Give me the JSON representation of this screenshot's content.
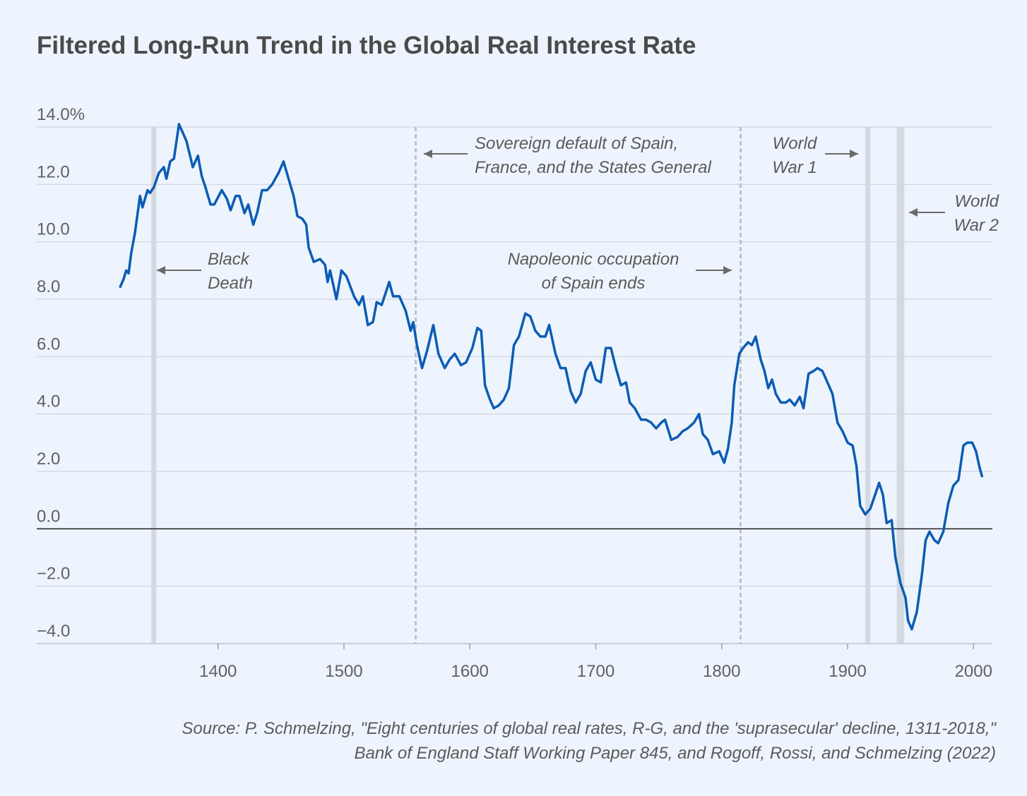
{
  "chart_data": {
    "type": "line",
    "title": "Filtered Long-Run Trend in the Global Real Interest Rate",
    "source": [
      "Source: P. Schmelzing, \"Eight centuries of global real rates, R-G, and the 'suprasecular' decline, 1311-2018,\"",
      "Bank of England Staff Working Paper 845, and Rogoff, Rossi, and Schmelzing (2022)"
    ],
    "color": "#0b5cb5",
    "xlim": [
      1256,
      2015
    ],
    "ylim": [
      -4,
      14
    ],
    "xticks": [
      1400,
      1500,
      1600,
      1700,
      1800,
      1900,
      2000
    ],
    "yticks": [
      {
        "value": 14,
        "label": "14.0%"
      },
      {
        "value": 12,
        "label": "12.0"
      },
      {
        "value": 10,
        "label": "10.0"
      },
      {
        "value": 8,
        "label": "8.0"
      },
      {
        "value": 6,
        "label": "6.0"
      },
      {
        "value": 4,
        "label": "4.0"
      },
      {
        "value": 2,
        "label": "2.0"
      },
      {
        "value": 0,
        "label": "0.0"
      },
      {
        "value": -2,
        "label": "−2.0"
      },
      {
        "value": -4,
        "label": "−4.0"
      }
    ],
    "grid": true,
    "events": [
      {
        "label": [
          "Black",
          "Death"
        ],
        "years": [
          1347,
          1351
        ],
        "style": "band"
      },
      {
        "label": [
          "Sovereign default of Spain,",
          "France, and the States General"
        ],
        "years": [
          1557
        ],
        "style": "dashed"
      },
      {
        "label": [
          "Napoleonic occupation",
          "of Spain ends"
        ],
        "years": [
          1815
        ],
        "style": "dashed"
      },
      {
        "label": [
          "World",
          "War 1"
        ],
        "years": [
          1914,
          1918
        ],
        "style": "band"
      },
      {
        "label": [
          "World",
          "War 2"
        ],
        "years": [
          1939,
          1945
        ],
        "style": "band"
      }
    ],
    "x": [
      1322,
      1325,
      1327,
      1329,
      1331,
      1334,
      1338,
      1340,
      1344,
      1346,
      1349,
      1353,
      1357,
      1359,
      1362,
      1365,
      1369,
      1372,
      1375,
      1380,
      1384,
      1387,
      1390,
      1394,
      1397,
      1403,
      1407,
      1410,
      1414,
      1417,
      1421,
      1424,
      1428,
      1431,
      1435,
      1439,
      1443,
      1448,
      1452,
      1456,
      1460,
      1463,
      1467,
      1470,
      1472,
      1476,
      1481,
      1485,
      1487,
      1489,
      1494,
      1498,
      1502,
      1508,
      1512,
      1515,
      1519,
      1523,
      1526,
      1530,
      1536,
      1539,
      1544,
      1549,
      1553,
      1555,
      1558,
      1562,
      1566,
      1571,
      1575,
      1580,
      1584,
      1588,
      1593,
      1597,
      1602,
      1606,
      1609,
      1612,
      1616,
      1619,
      1623,
      1627,
      1631,
      1635,
      1639,
      1644,
      1648,
      1652,
      1656,
      1660,
      1663,
      1668,
      1672,
      1676,
      1680,
      1684,
      1688,
      1692,
      1696,
      1700,
      1704,
      1708,
      1712,
      1716,
      1720,
      1724,
      1727,
      1731,
      1736,
      1740,
      1744,
      1748,
      1752,
      1755,
      1760,
      1765,
      1769,
      1773,
      1778,
      1782,
      1785,
      1789,
      1793,
      1798,
      1802,
      1805,
      1808,
      1810,
      1814,
      1817,
      1821,
      1824,
      1827,
      1831,
      1834,
      1837,
      1840,
      1843,
      1847,
      1851,
      1854,
      1858,
      1862,
      1865,
      1869,
      1873,
      1876,
      1880,
      1884,
      1888,
      1892,
      1896,
      1900,
      1904,
      1907,
      1910,
      1914,
      1918,
      1922,
      1925,
      1928,
      1931,
      1935,
      1938,
      1942,
      1946,
      1948,
      1951,
      1955,
      1959,
      1962,
      1965,
      1969,
      1972,
      1976,
      1980,
      1984,
      1988,
      1992,
      1995,
      1999,
      2002,
      2005,
      2007
    ],
    "values": [
      8.4,
      8.7,
      9.0,
      8.9,
      9.6,
      10.3,
      11.6,
      11.2,
      11.8,
      11.7,
      11.9,
      12.4,
      12.6,
      12.2,
      12.8,
      12.9,
      14.1,
      13.8,
      13.5,
      12.6,
      13.0,
      12.3,
      11.9,
      11.3,
      11.3,
      11.8,
      11.5,
      11.1,
      11.6,
      11.6,
      11.0,
      11.3,
      10.6,
      11.0,
      11.8,
      11.8,
      12.0,
      12.4,
      12.8,
      12.2,
      11.6,
      10.9,
      10.8,
      10.6,
      9.8,
      9.3,
      9.4,
      9.2,
      8.6,
      9.0,
      8.0,
      9.0,
      8.8,
      8.1,
      7.8,
      8.1,
      7.1,
      7.2,
      7.9,
      7.8,
      8.6,
      8.1,
      8.1,
      7.6,
      6.9,
      7.2,
      6.4,
      5.6,
      6.2,
      7.1,
      6.1,
      5.6,
      5.9,
      6.1,
      5.7,
      5.8,
      6.3,
      7.0,
      6.9,
      5.0,
      4.5,
      4.2,
      4.3,
      4.5,
      4.9,
      6.4,
      6.7,
      7.5,
      7.4,
      6.9,
      6.7,
      6.7,
      7.1,
      6.1,
      5.6,
      5.6,
      4.8,
      4.4,
      4.7,
      5.5,
      5.8,
      5.2,
      5.1,
      6.3,
      6.3,
      5.6,
      5.0,
      5.1,
      4.4,
      4.2,
      3.8,
      3.8,
      3.7,
      3.5,
      3.7,
      3.8,
      3.1,
      3.2,
      3.4,
      3.5,
      3.7,
      4.0,
      3.3,
      3.1,
      2.6,
      2.7,
      2.3,
      2.8,
      3.7,
      5.0,
      6.1,
      6.3,
      6.5,
      6.4,
      6.7,
      5.9,
      5.5,
      4.9,
      5.2,
      4.7,
      4.4,
      4.4,
      4.5,
      4.3,
      4.6,
      4.2,
      5.4,
      5.5,
      5.6,
      5.5,
      5.1,
      4.7,
      3.7,
      3.4,
      3.0,
      2.9,
      2.2,
      0.8,
      0.5,
      0.7,
      1.2,
      1.6,
      1.2,
      0.2,
      0.3,
      -1.0,
      -1.9,
      -2.4,
      -3.2,
      -3.5,
      -2.9,
      -1.6,
      -0.4,
      -0.1,
      -0.4,
      -0.5,
      -0.1,
      0.9,
      1.5,
      1.7,
      2.9,
      3.0,
      3.0,
      2.7,
      2.1,
      1.8
    ]
  }
}
